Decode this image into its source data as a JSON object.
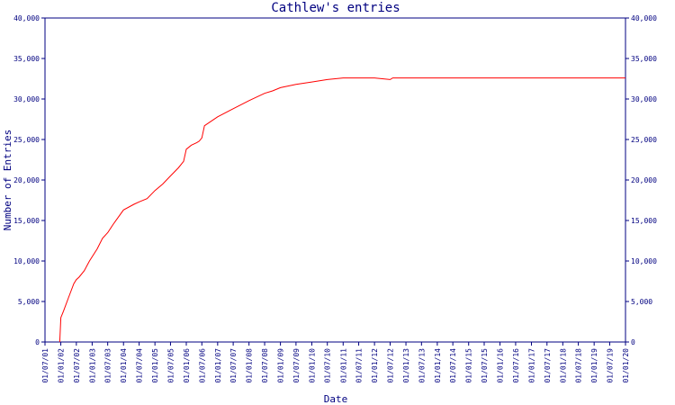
{
  "chart_data": {
    "type": "line",
    "title": "Cathlew's entries",
    "xlabel": "Date",
    "ylabel": "Number of Entries",
    "ylim": [
      0,
      40000
    ],
    "y_ticks": [
      0,
      5000,
      10000,
      15000,
      20000,
      25000,
      30000,
      35000,
      40000
    ],
    "y_tick_labels": [
      "0",
      "5,000",
      "10,000",
      "15,000",
      "20,000",
      "25,000",
      "30,000",
      "35,000",
      "40,000"
    ],
    "x_tick_labels": [
      "01/07/01",
      "01/01/02",
      "01/07/02",
      "01/01/03",
      "01/07/03",
      "01/01/04",
      "01/07/04",
      "01/01/05",
      "01/07/05",
      "01/01/06",
      "01/07/06",
      "01/01/07",
      "01/07/07",
      "01/01/08",
      "01/07/08",
      "01/01/09",
      "01/07/09",
      "01/01/10",
      "01/07/10",
      "01/01/11",
      "01/07/11",
      "01/01/12",
      "01/07/12",
      "01/01/13",
      "01/07/13",
      "01/01/14",
      "01/07/14",
      "01/01/15",
      "01/07/15",
      "01/01/16",
      "01/07/16",
      "01/01/17",
      "01/07/17",
      "01/01/18",
      "01/07/18",
      "01/01/19",
      "01/07/19",
      "01/01/20"
    ],
    "grid": false,
    "line_color": "#ff0000",
    "axis_color": "#000080",
    "series": [
      {
        "x": [
          "2001-12-20",
          "2002-01-01",
          "2002-02-01",
          "2002-04-01",
          "2002-06-01",
          "2002-07-01",
          "2002-08-01",
          "2002-10-01",
          "2002-12-01",
          "2003-03-01",
          "2003-05-01",
          "2003-07-01",
          "2003-09-01",
          "2004-01-01",
          "2004-05-01",
          "2004-07-01",
          "2004-10-01",
          "2005-01-01",
          "2005-04-01",
          "2005-07-01",
          "2005-10-01",
          "2005-12-01",
          "2006-01-01",
          "2006-03-01",
          "2006-05-01",
          "2006-06-01",
          "2006-07-01",
          "2006-08-01",
          "2007-01-01",
          "2007-07-01",
          "2008-01-01",
          "2008-07-01",
          "2008-10-01",
          "2009-01-01",
          "2009-07-01",
          "2010-01-01",
          "2010-07-01",
          "2011-01-01",
          "2011-07-01",
          "2012-01-01",
          "2012-04-01",
          "2012-07-01",
          "2012-08-01",
          "2013-07-01",
          "2016-01-01",
          "2019-12-31"
        ],
        "y": [
          0,
          3000,
          3800,
          5500,
          7200,
          7700,
          8000,
          8800,
          10000,
          11500,
          12800,
          13500,
          14500,
          16300,
          17000,
          17300,
          17700,
          18700,
          19500,
          20500,
          21500,
          22300,
          23800,
          24300,
          24600,
          24800,
          25200,
          26700,
          27800,
          28800,
          29800,
          30700,
          31000,
          31400,
          31800,
          32100,
          32400,
          32600,
          32600,
          32600,
          32500,
          32400,
          32600,
          32600,
          32600,
          32600
        ]
      }
    ]
  }
}
